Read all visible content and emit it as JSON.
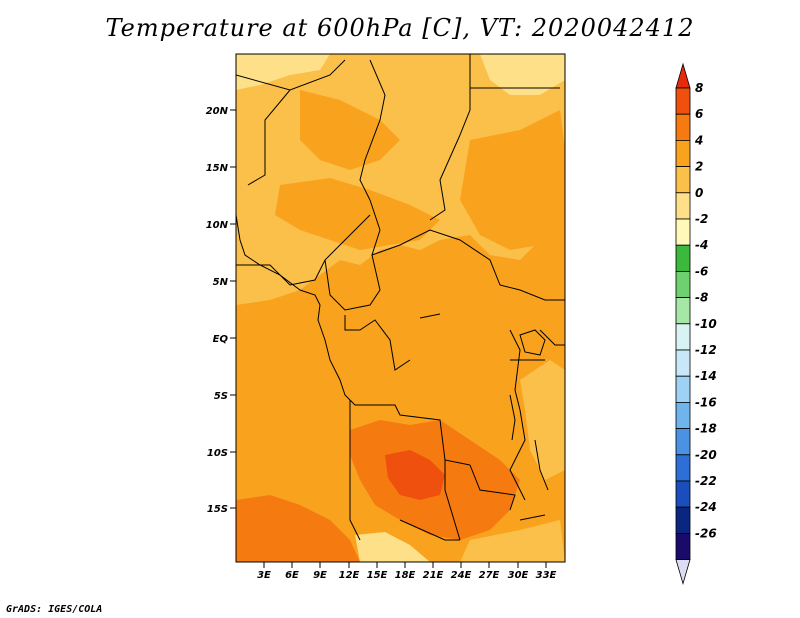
{
  "title": "Temperature at 600hPa [C], VT: 2020042412",
  "credit": "GrADS: IGES/COLA",
  "map": {
    "lat_labels": [
      "20N",
      "15N",
      "10N",
      "5N",
      "EQ",
      "5S",
      "10S",
      "15S"
    ],
    "lon_labels": [
      "3E",
      "6E",
      "9E",
      "12E",
      "15E",
      "18E",
      "21E",
      "24E",
      "27E",
      "30E",
      "33E"
    ],
    "field": "temperature_600hPa",
    "units": "C"
  },
  "colorbar": {
    "labels": [
      "8",
      "6",
      "4",
      "2",
      "0",
      "-2",
      "-4",
      "-6",
      "-8",
      "-10",
      "-12",
      "-14",
      "-16",
      "-18",
      "-20",
      "-22",
      "-24",
      "-26"
    ],
    "colors": [
      "#e82a0c",
      "#f0500e",
      "#f57a10",
      "#f9a21e",
      "#fbc04a",
      "#fde088",
      "#fff8b8",
      "#3cb83c",
      "#6fd06f",
      "#a6e6a6",
      "#d8f4f2",
      "#c8e8fa",
      "#9ed2f4",
      "#6fb4ec",
      "#4b92e2",
      "#2d6fd6",
      "#1b4dbd",
      "#0a2680",
      "#1a0a6a",
      "#dcdcf4"
    ]
  }
}
